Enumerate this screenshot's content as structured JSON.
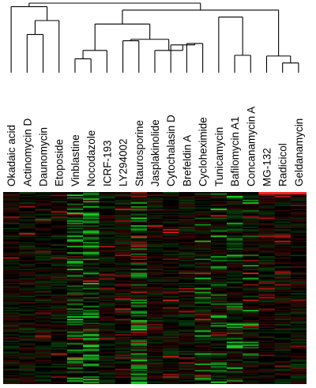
{
  "chart_data": {
    "type": "heatmap",
    "title": "",
    "colors": {
      "up": "#ff2020",
      "down": "#20ff30",
      "neutral": "#000000",
      "background": "#ffffff"
    },
    "columns": [
      "Okadaic acid",
      "Actinomycin D",
      "Daunomycin",
      "Etoposide",
      "Vinblastine",
      "Nocodazole",
      "ICRF-193",
      "LY294002",
      "Staurosporine",
      "Jasplakinolide",
      "Cytochalasin D",
      "Brefeldin A",
      "Cycloheximide",
      "Tunicamycin",
      "Bafilomycin A1",
      "Concanamycin A",
      "MG-132",
      "Radicicol",
      "Geldanamycin"
    ],
    "dendrogram": {
      "merges": [
        [
          1,
          2,
          0.55
        ],
        [
          -1,
          3,
          0.75
        ],
        [
          0,
          -2,
          0.95
        ],
        [
          4,
          5,
          0.2
        ],
        [
          -4,
          6,
          0.32
        ],
        [
          11,
          12,
          0.42
        ],
        [
          10,
          -6,
          0.4
        ],
        [
          9,
          -7,
          0.32
        ],
        [
          7,
          8,
          0.46
        ],
        [
          -8,
          -9,
          0.48
        ],
        [
          -5,
          -10,
          0.7
        ],
        [
          17,
          18,
          0.14
        ],
        [
          16,
          -12,
          0.24
        ],
        [
          14,
          15,
          0.25
        ],
        [
          13,
          -14,
          0.8
        ],
        [
          -11,
          -13,
          0.9
        ],
        [
          -3,
          -16,
          1.0
        ]
      ]
    },
    "rows": 150,
    "value_range": [
      -1,
      1
    ]
  }
}
